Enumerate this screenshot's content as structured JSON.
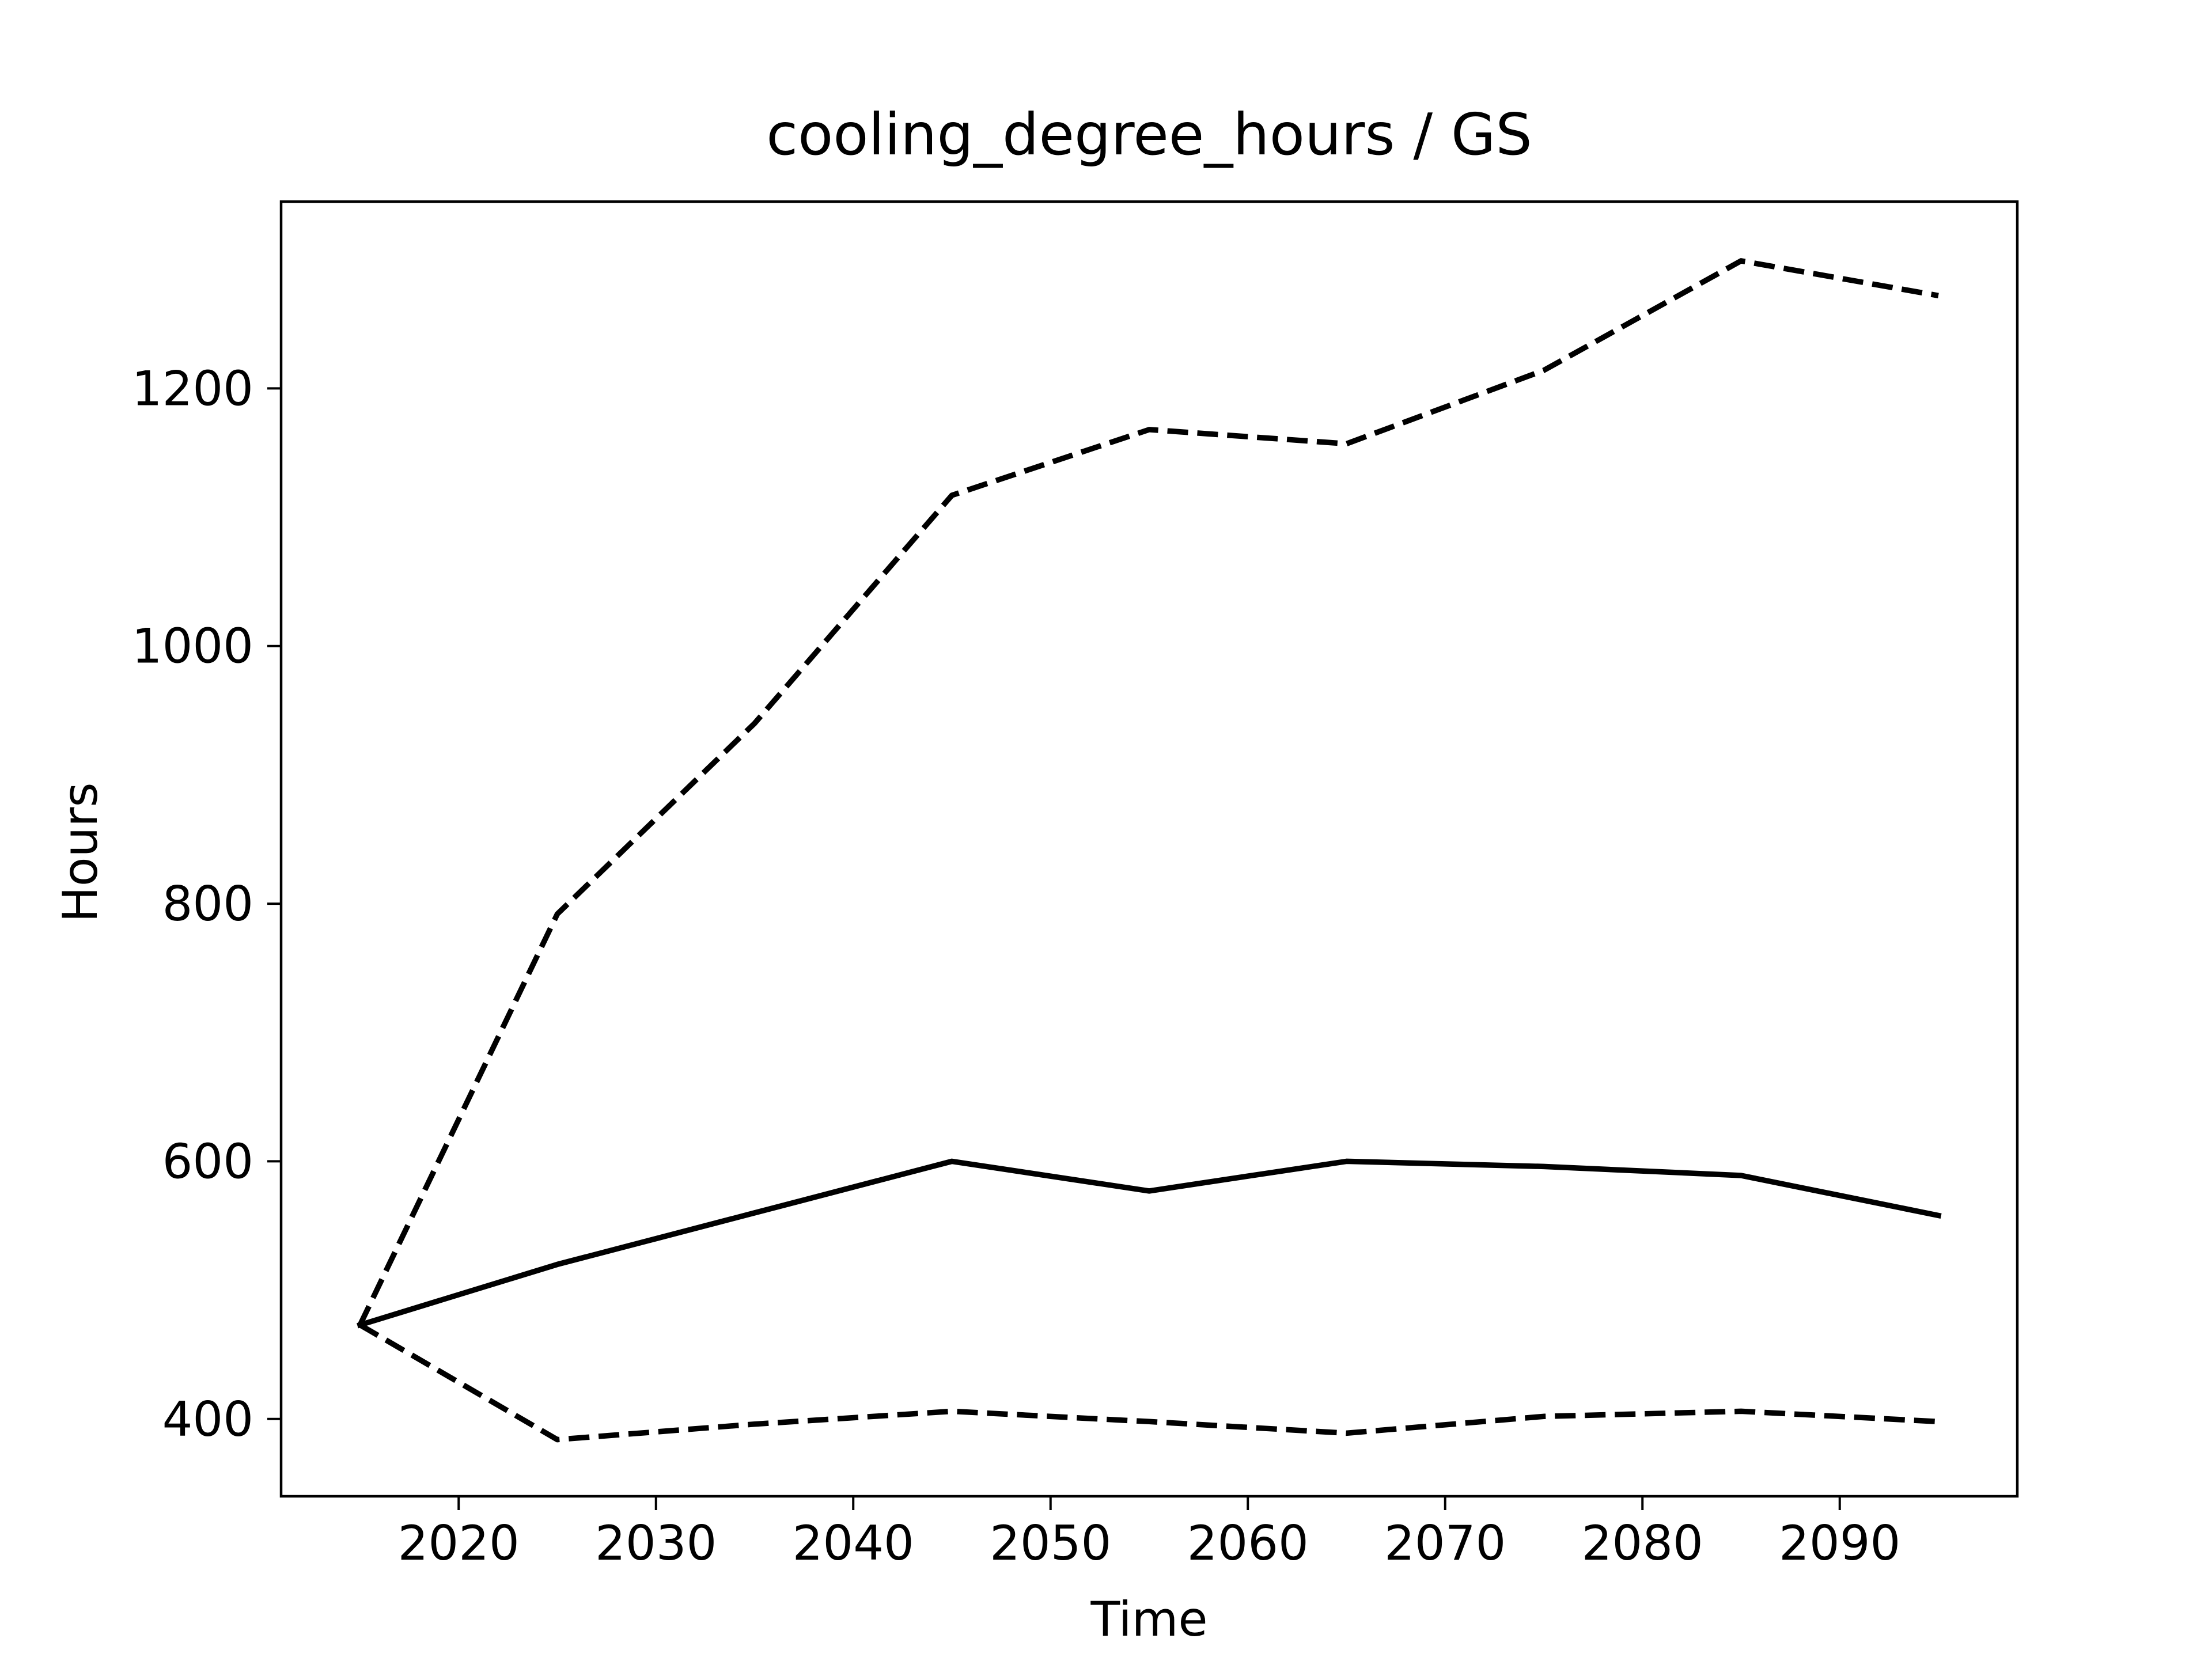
{
  "chart_data": {
    "type": "line",
    "title": "cooling_degree_hours / GS",
    "xlabel": "Time",
    "ylabel": "Hours",
    "xlim": [
      2011,
      2099
    ],
    "ylim": [
      340,
      1345
    ],
    "xticks": [
      2020,
      2030,
      2040,
      2050,
      2060,
      2070,
      2080,
      2090
    ],
    "yticks": [
      400,
      600,
      800,
      1000,
      1200
    ],
    "xtick_labels": [
      "2020",
      "2030",
      "2040",
      "2050",
      "2060",
      "2070",
      "2080",
      "2090"
    ],
    "ytick_labels": [
      "400",
      "600",
      "800",
      "1000",
      "1200"
    ],
    "grid": false,
    "legend": "none",
    "x": [
      2015,
      2025,
      2035,
      2045,
      2055,
      2065,
      2075,
      2085,
      2095
    ],
    "series": [
      {
        "style": "solid",
        "color": "#000000",
        "values": [
          473,
          520,
          560,
          600,
          577,
          600,
          596,
          589,
          558
        ]
      },
      {
        "style": "dashed",
        "color": "#000000",
        "values": [
          473,
          792,
          940,
          1117,
          1168,
          1157,
          1214,
          1299,
          1272
        ]
      },
      {
        "style": "dashed",
        "color": "#000000",
        "values": [
          473,
          384,
          396,
          406,
          398,
          389,
          402,
          406,
          398
        ]
      }
    ]
  }
}
